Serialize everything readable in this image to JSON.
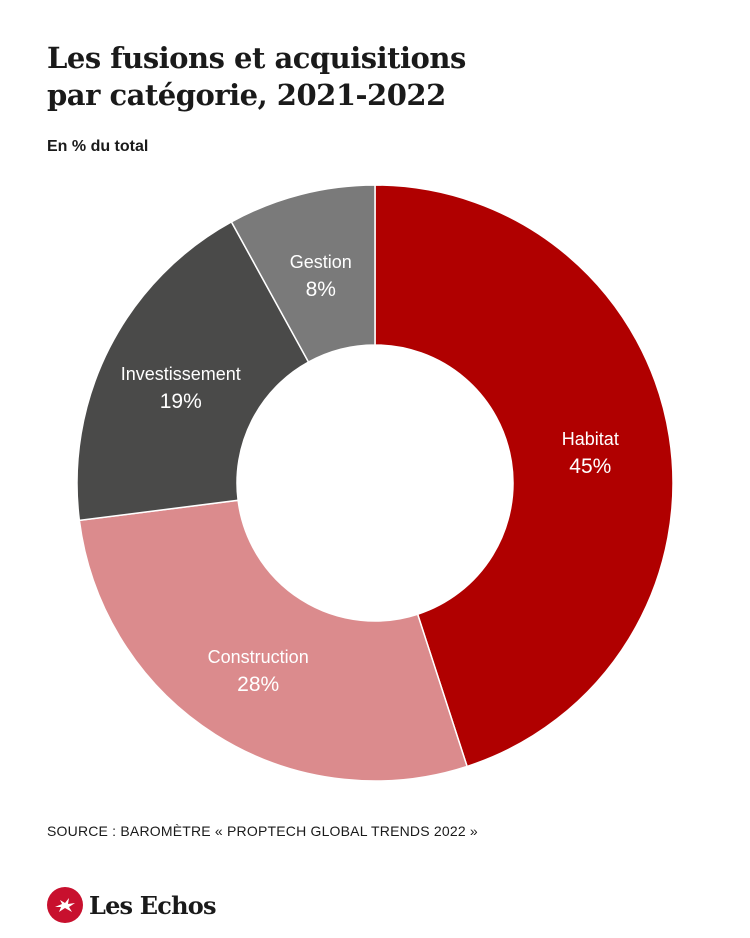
{
  "header": {
    "title_line1": "Les fusions et acquisitions",
    "title_line2": "par catégorie, 2021-2022",
    "subtitle": "En % du total"
  },
  "footer": {
    "source": "SOURCE : BAROMÈTRE « PROPTECH GLOBAL TRENDS 2022 »",
    "brand": "Les Echos",
    "brand_color": "#c8102e"
  },
  "chart_data": {
    "type": "pie",
    "variant": "donut",
    "title": "Les fusions et acquisitions par catégorie, 2021-2022",
    "subtitle": "En % du total",
    "unit": "%",
    "slices": [
      {
        "label": "Habitat",
        "value": 45,
        "display": "45%",
        "color": "#b00000"
      },
      {
        "label": "Construction",
        "value": 28,
        "display": "28%",
        "color": "#db8b8d"
      },
      {
        "label": "Investissement",
        "value": 19,
        "display": "19%",
        "color": "#4a4a49"
      },
      {
        "label": "Gestion",
        "value": 8,
        "display": "8%",
        "color": "#7a7a7a"
      }
    ],
    "legend": "none",
    "labels": "inside"
  }
}
